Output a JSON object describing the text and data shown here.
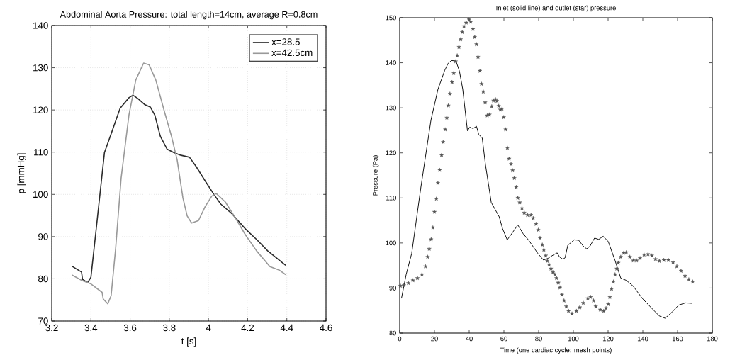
{
  "chart_data": [
    {
      "type": "line",
      "title": "Abdominal Aorta Pressure: total length=14cm, average R=0.8cm",
      "xlabel": "t [s]",
      "ylabel": "p [mmHg]",
      "xlim": [
        3.2,
        4.6
      ],
      "ylim": [
        70,
        140
      ],
      "xticks": [
        3.2,
        3.4,
        3.6,
        3.8,
        4,
        4.2,
        4.4,
        4.6
      ],
      "yticks": [
        70,
        80,
        90,
        100,
        110,
        120,
        130,
        140
      ],
      "grid": true,
      "legend": "top right",
      "line_style": "solid",
      "marker": "none",
      "series": [
        {
          "name": "x=28.5",
          "color": "#2b2b2b",
          "x": [
            3.303,
            3.352,
            3.357,
            3.383,
            3.4,
            3.429,
            3.469,
            3.503,
            3.549,
            3.594,
            3.615,
            3.64,
            3.674,
            3.703,
            3.726,
            3.754,
            3.789,
            3.823,
            3.857,
            3.903,
            3.937,
            3.983,
            4.029,
            4.063,
            4.12,
            4.189,
            4.246,
            4.303,
            4.394
          ],
          "values": [
            83.0,
            81.6,
            79.9,
            79.1,
            80.4,
            92.7,
            109.9,
            114.3,
            120.4,
            122.9,
            123.5,
            122.7,
            121.3,
            120.7,
            118.8,
            113.8,
            110.7,
            109.9,
            109.3,
            108.8,
            106.6,
            103.2,
            99.9,
            97.7,
            95.4,
            91.8,
            89.3,
            86.6,
            83.2
          ]
        },
        {
          "name": "x=42.5cm",
          "color": "#999999",
          "x": [
            3.303,
            3.354,
            3.4,
            3.457,
            3.463,
            3.486,
            3.503,
            3.526,
            3.554,
            3.594,
            3.629,
            3.669,
            3.697,
            3.731,
            3.777,
            3.811,
            3.84,
            3.869,
            3.891,
            3.914,
            3.949,
            3.983,
            4.017,
            4.04,
            4.086,
            4.131,
            4.189,
            4.246,
            4.314,
            4.36,
            4.394
          ],
          "values": [
            80.9,
            79.6,
            78.8,
            76.8,
            75.2,
            74.1,
            76.0,
            87.1,
            103.8,
            118.8,
            127.1,
            131.1,
            130.7,
            127.1,
            119.3,
            113.8,
            108.2,
            99.3,
            94.9,
            93.2,
            93.8,
            97.1,
            99.6,
            100.2,
            98.2,
            94.9,
            90.4,
            86.6,
            82.9,
            82.1,
            81.0
          ]
        }
      ]
    },
    {
      "type": "line",
      "title": "Inlet (solid line) and outlet (star) pressure",
      "xlabel": "Time (one cardiac cycle: mesh points)",
      "ylabel": "Pressure (Pa)",
      "xlim": [
        0,
        180
      ],
      "ylim": [
        80,
        150
      ],
      "xticks": [
        0,
        20,
        40,
        60,
        80,
        100,
        120,
        140,
        160,
        180
      ],
      "yticks": [
        80,
        90,
        100,
        110,
        120,
        130,
        140,
        150
      ],
      "grid": false,
      "legend": false,
      "series": [
        {
          "type": "line",
          "color": "#000000",
          "marker": "none",
          "line_style": "solid",
          "x": [
            1,
            3.7,
            6.9,
            12.2,
            18,
            22,
            25.9,
            27.9,
            29.8,
            32.4,
            34.4,
            36.3,
            39,
            40.3,
            42.2,
            44.2,
            45.5,
            47.5,
            49.4,
            51.4,
            52.7,
            57.3,
            59.2,
            61.9,
            65.1,
            68,
            71,
            74.3,
            79.5,
            82.8,
            85.4,
            88.7,
            90.7,
            92,
            93.9,
            95.2,
            96.8,
            100.5,
            103.1,
            105.7,
            107.7,
            109.6,
            112.2,
            114.6,
            117.2,
            120.1,
            124,
            127.3,
            130.5,
            134.5,
            139.7,
            144.9,
            149.5,
            152.8,
            156.7,
            160.6,
            164.6,
            168.5
          ],
          "values": [
            87.7,
            93,
            97.7,
            112.4,
            127.3,
            134.1,
            138.3,
            139.9,
            140.5,
            140.4,
            138.1,
            134.1,
            124.9,
            125.7,
            125.4,
            125.9,
            124.1,
            123.3,
            117.3,
            112.3,
            109,
            105.8,
            103.2,
            100.7,
            102.4,
            104,
            102.1,
            100.6,
            97.7,
            96.2,
            96.6,
            97.4,
            97.8,
            96.9,
            96.4,
            96.7,
            99.5,
            100.7,
            100.6,
            99.3,
            98.7,
            99.3,
            101.1,
            100.8,
            101.5,
            100.3,
            96.1,
            92.2,
            91.7,
            90.4,
            87.7,
            85.6,
            83.8,
            83.3,
            84.6,
            86.2,
            86.7,
            86.6
          ]
        },
        {
          "type": "scatter",
          "color": "#555555",
          "marker": "star",
          "x": [
            0.4,
            2.4,
            5,
            7.6,
            10.2,
            12.8,
            14.8,
            16.1,
            17,
            18.1,
            19.1,
            20,
            21.1,
            22,
            23,
            24.1,
            25,
            26.2,
            27.1,
            28,
            28.9,
            30.1,
            31.1,
            32.2,
            33.1,
            34.1,
            35.1,
            36,
            37,
            38.3,
            39.9,
            40.9,
            42.2,
            43.2,
            44.2,
            45.1,
            46.2,
            47.1,
            48.1,
            49.2,
            50.4,
            51.7,
            53,
            54,
            55.1,
            56,
            57,
            57.9,
            58.9,
            59.9,
            61,
            62,
            63,
            64.1,
            65,
            66,
            67.1,
            68,
            69.1,
            70.4,
            71.7,
            73.6,
            75.6,
            76.9,
            78.5,
            79.8,
            80.8,
            82.1,
            83,
            84.1,
            85,
            86,
            87.1,
            88.2,
            89.3,
            90.3,
            91.3,
            92.3,
            93.4,
            94.6,
            95.9,
            97.2,
            99.2,
            101.8,
            103.7,
            105.7,
            108.3,
            109.9,
            111.6,
            112.9,
            115.5,
            117.5,
            118.8,
            120.1,
            121,
            122,
            123.1,
            124,
            125,
            125.9,
            127.3,
            129,
            130.5,
            132.5,
            134.5,
            136.4,
            138.4,
            140.7,
            143,
            145.2,
            147.3,
            149.5,
            152.1,
            154.7,
            157.4,
            159.6,
            162,
            164.3,
            166.5,
            168.7
          ],
          "values": [
            90.5,
            90.6,
            91.1,
            91.7,
            92.2,
            93,
            94.8,
            96.9,
            98.7,
            100.8,
            103.4,
            106.9,
            109.8,
            113.3,
            116.2,
            119.5,
            122.4,
            125.2,
            127.8,
            130.5,
            133.1,
            135.7,
            137.7,
            140.3,
            141.6,
            143.5,
            145.2,
            146.8,
            148.1,
            148.9,
            149.6,
            149.1,
            147.5,
            145.7,
            144.1,
            141.3,
            138.2,
            135.3,
            133.6,
            131.2,
            128.3,
            128.5,
            130.3,
            131.6,
            131.9,
            131.5,
            130.4,
            129.6,
            129.8,
            127.9,
            125.2,
            121.1,
            118.7,
            117.5,
            116.1,
            114.4,
            112.4,
            110,
            109,
            107.7,
            106.7,
            106.2,
            106.2,
            105.5,
            104.2,
            102.9,
            101.1,
            99.6,
            98.5,
            97.2,
            96,
            95.2,
            94.3,
            93.5,
            93,
            92.2,
            91.2,
            90.1,
            88.5,
            87.2,
            85.9,
            84.9,
            84.3,
            84.9,
            85.7,
            86.7,
            87.7,
            88,
            87.2,
            85.9,
            85.2,
            84.9,
            85.5,
            86.4,
            88,
            89.8,
            91.4,
            93,
            94.3,
            95.6,
            96.9,
            97.8,
            97.9,
            96.9,
            96.1,
            96.1,
            96.6,
            97.4,
            97.5,
            97.2,
            96.4,
            96,
            96.2,
            96.2,
            95.7,
            94.8,
            93.8,
            92.7,
            91.9,
            91.4
          ]
        }
      ]
    }
  ]
}
